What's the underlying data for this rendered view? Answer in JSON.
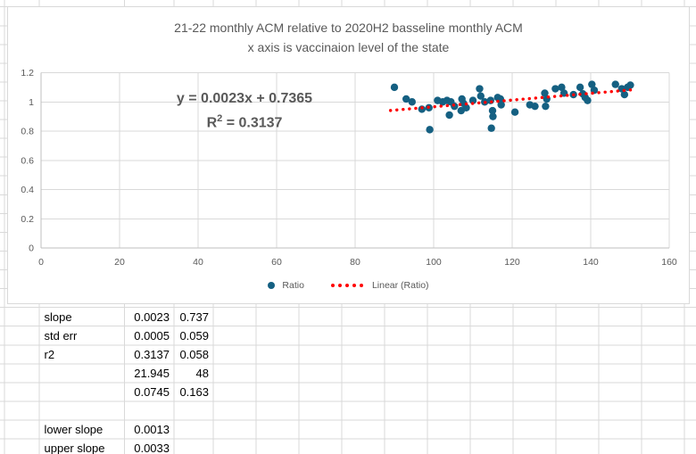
{
  "chart_data": {
    "type": "scatter",
    "title_line1": "21-22 monthly ACM relative to 2020H2 basseline monthly ACM",
    "title_line2": "x axis is vaccinaion level of the state",
    "equation": "y = 0.0023x + 0.7365",
    "r2": {
      "prefix": "R",
      "sup": "2",
      "rest": " = 0.3137"
    },
    "xlabel": "",
    "ylabel": "",
    "xlim": [
      0,
      160
    ],
    "ylim": [
      0,
      1.2
    ],
    "xticks": [
      "0",
      "20",
      "40",
      "60",
      "80",
      "100",
      "120",
      "140",
      "160"
    ],
    "yticks": [
      "0",
      "0.2",
      "0.4",
      "0.6",
      "0.8",
      "1",
      "1.2"
    ],
    "grid": true,
    "legend_position": "bottom",
    "point_color": "#156082",
    "series": [
      {
        "name": "Ratio",
        "points": [
          [
            90,
            1.1
          ],
          [
            93,
            1.02
          ],
          [
            94.5,
            1.0
          ],
          [
            97,
            0.95
          ],
          [
            98.8,
            0.96
          ],
          [
            99,
            0.81
          ],
          [
            101,
            1.01
          ],
          [
            102.3,
            1.0
          ],
          [
            103.4,
            1.01
          ],
          [
            104.4,
            1.0
          ],
          [
            104,
            0.91
          ],
          [
            105.3,
            0.97
          ],
          [
            107.2,
            1.02
          ],
          [
            107.6,
            0.99
          ],
          [
            107,
            0.94
          ],
          [
            108.3,
            0.96
          ],
          [
            110,
            1.01
          ],
          [
            111.7,
            1.09
          ],
          [
            112,
            1.04
          ],
          [
            113,
            1.0
          ],
          [
            114.5,
            1.01
          ],
          [
            115,
            0.94
          ],
          [
            115.1,
            0.9
          ],
          [
            114.7,
            0.82
          ],
          [
            116.3,
            1.03
          ],
          [
            117,
            1.02
          ],
          [
            117.2,
            0.98
          ],
          [
            120.7,
            0.93
          ],
          [
            124.5,
            0.98
          ],
          [
            125.8,
            0.97
          ],
          [
            128.3,
            1.06
          ],
          [
            128.8,
            1.02
          ],
          [
            128.5,
            0.97
          ],
          [
            131,
            1.09
          ],
          [
            132.6,
            1.1
          ],
          [
            133.2,
            1.06
          ],
          [
            135.6,
            1.05
          ],
          [
            137.3,
            1.1
          ],
          [
            138.0,
            1.055
          ],
          [
            138.6,
            1.03
          ],
          [
            139.2,
            1.01
          ],
          [
            140.3,
            1.12
          ],
          [
            140.9,
            1.08
          ],
          [
            146.3,
            1.12
          ],
          [
            147.9,
            1.09
          ],
          [
            148.6,
            1.05
          ],
          [
            149.4,
            1.1
          ],
          [
            150.1,
            1.115
          ]
        ]
      }
    ],
    "trendline": {
      "name": "Linear (Ratio)",
      "slope": 0.0023,
      "intercept": 0.7365,
      "x_start": 89,
      "x_end": 151.5,
      "color": "#FF0000",
      "style": "dotted"
    }
  },
  "sheet": {
    "stats_rows": [
      {
        "label": "slope",
        "v1": "0.0023",
        "v2": "0.737"
      },
      {
        "label": "std err",
        "v1": "0.0005",
        "v2": "0.059"
      },
      {
        "label": "r2",
        "v1": "0.3137",
        "v2": "0.058"
      },
      {
        "label": "",
        "v1": "21.945",
        "v2": "48"
      },
      {
        "label": "",
        "v1": "0.0745",
        "v2": "0.163"
      },
      {
        "label": "",
        "v1": "",
        "v2": ""
      },
      {
        "label": "lower slope",
        "v1": "0.0013",
        "v2": ""
      },
      {
        "label": "upper slope",
        "v1": "0.0033",
        "v2": ""
      }
    ]
  },
  "colors": {
    "sheet_gridline": "#d9d9d9",
    "chart_gridline": "#d9d9d9",
    "axis_line": "#bfbfbf",
    "text_gray": "#595959",
    "point": "#156082",
    "trend": "#FF0000"
  }
}
